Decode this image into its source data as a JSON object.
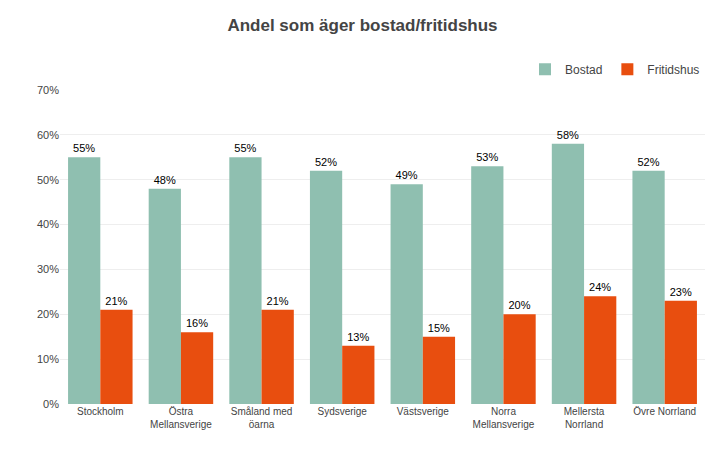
{
  "chart_data": {
    "type": "bar",
    "title": "Andel som äger bostad/fritidshus",
    "categories": [
      "Stockholm",
      "Östra\nMellansverige",
      "Småland med\nöarna",
      "Sydsverige",
      "Västsverige",
      "Norra\nMellansverige",
      "Mellersta\nNorrland",
      "Övre Norrland"
    ],
    "series": [
      {
        "name": "Bostad",
        "color": "#8fbfb0",
        "values": [
          55,
          48,
          55,
          52,
          49,
          53,
          58,
          52
        ],
        "value_labels": [
          "55%",
          "48%",
          "55%",
          "52%",
          "49%",
          "53%",
          "58%",
          "52%"
        ]
      },
      {
        "name": "Fritidshus",
        "color": "#e84e0f",
        "values": [
          21,
          16,
          21,
          13,
          15,
          20,
          24,
          23
        ],
        "value_labels": [
          "21%",
          "16%",
          "21%",
          "13%",
          "15%",
          "20%",
          "24%",
          "23%"
        ]
      }
    ],
    "ylim": [
      0,
      70
    ],
    "yticks": [
      {
        "value": 0,
        "label": "0%"
      },
      {
        "value": 10,
        "label": "10%"
      },
      {
        "value": 20,
        "label": "20%"
      },
      {
        "value": 30,
        "label": "30%"
      },
      {
        "value": 40,
        "label": "40%"
      },
      {
        "value": 50,
        "label": "50%"
      },
      {
        "value": 60,
        "label": "60%"
      },
      {
        "value": 70,
        "label": "70%"
      }
    ],
    "grid": true,
    "legend": "upper right",
    "data_labels": true
  }
}
